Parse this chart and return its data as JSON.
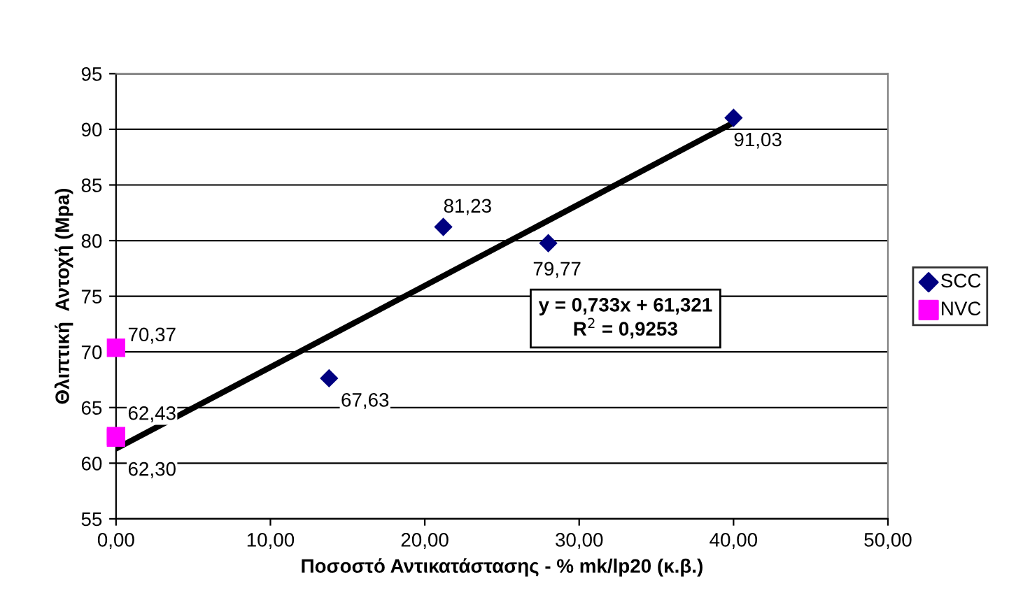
{
  "chart_data": {
    "type": "scatter",
    "xlabel": "Ποσοστό Αντικατάστασης - % mk/lp20 (κ.β.)",
    "ylabel": "Θλιπτική  Αντοχή (Mpa)",
    "series": [
      {
        "name": "SCC",
        "color": "#000080",
        "marker": "diamond",
        "x": [
          13.8,
          21.2,
          28.0,
          40.0
        ],
        "values": [
          67.63,
          81.23,
          79.77,
          91.03
        ],
        "value_labels": [
          "67,63",
          "81,23",
          "79,77",
          "91,03"
        ]
      },
      {
        "name": "NVC",
        "color": "#ff00ff",
        "marker": "square",
        "x": [
          0,
          0,
          0
        ],
        "values": [
          70.37,
          62.43,
          62.3
        ],
        "value_labels": [
          "70,37",
          "62,43",
          "62,30"
        ]
      },
      {
        "type": "line",
        "color": "#000000",
        "x": [
          0,
          40
        ],
        "values": [
          61.3,
          90.6
        ]
      }
    ],
    "annotations": [
      "y = 0,733x + 61,321\nR$^{2}$ = 0,9253"
    ],
    "xlim": [
      0,
      50
    ],
    "xticks": [
      {
        "value": 0,
        "label": "0,00"
      },
      {
        "value": 10,
        "label": "10,00"
      },
      {
        "value": 20,
        "label": "20,00"
      },
      {
        "value": 30,
        "label": "30,00"
      },
      {
        "value": 40,
        "label": "40,00"
      },
      {
        "value": 50,
        "label": "50,00"
      }
    ],
    "ylim": [
      55,
      95
    ],
    "yticks": [
      55,
      60,
      65,
      70,
      75,
      80,
      85,
      90,
      95
    ],
    "grid": "y",
    "legend": "right"
  }
}
